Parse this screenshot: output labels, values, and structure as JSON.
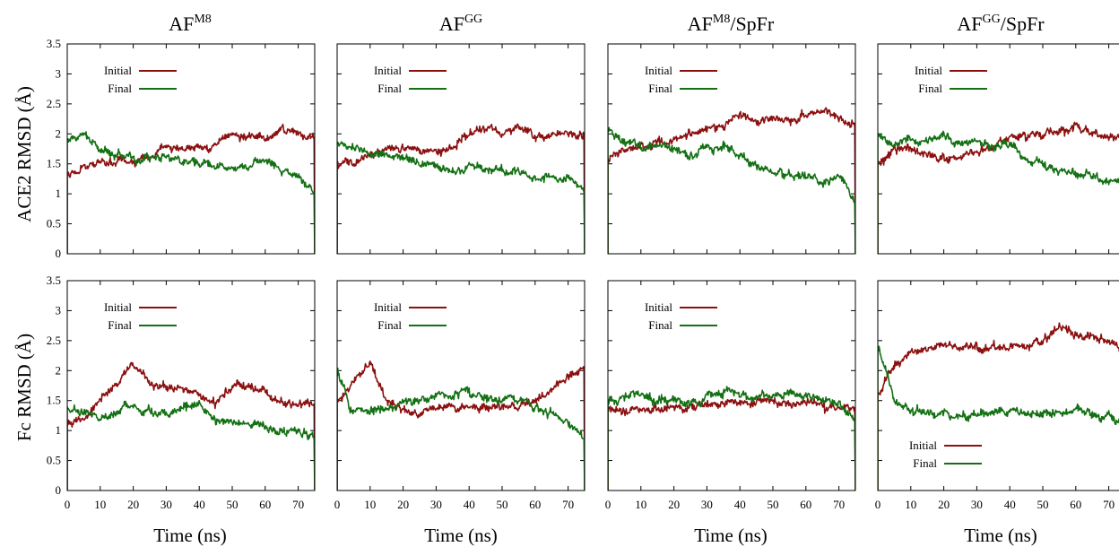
{
  "figure": {
    "ylabels": [
      "ACE2 RMSD (Å)",
      "Fc RMSD (Å)"
    ],
    "xlabel": "Time (ns)",
    "titles": [
      {
        "base": "AF",
        "sup": "M8",
        "suffix": ""
      },
      {
        "base": "AF",
        "sup": "GG",
        "suffix": ""
      },
      {
        "base": "AF",
        "sup": "M8",
        "suffix": "/SpFr"
      },
      {
        "base": "AF",
        "sup": "GG",
        "suffix": "/SpFr"
      }
    ],
    "legend": {
      "initial": "Initial",
      "final": "Final"
    },
    "colors": {
      "initial": "#8b1010",
      "final": "#137013"
    }
  },
  "chart_data": [
    {
      "type": "line",
      "row": "ACE2",
      "column_title": "AFM8",
      "xlabel": "Time (ns)",
      "ylabel": "ACE2 RMSD (Å)",
      "xlim": [
        0,
        75
      ],
      "ylim": [
        0,
        3.5
      ],
      "xticks": [
        0,
        10,
        20,
        30,
        40,
        50,
        60,
        70
      ],
      "yticks": [
        0,
        0.5,
        1,
        1.5,
        2,
        2.5,
        3,
        3.5
      ],
      "legend_position": "top-left",
      "series": [
        {
          "name": "Initial",
          "x": [
            0,
            5,
            10,
            15,
            20,
            25,
            30,
            35,
            40,
            45,
            50,
            55,
            60,
            65,
            70,
            75
          ],
          "y": [
            1.3,
            1.45,
            1.5,
            1.55,
            1.55,
            1.6,
            1.8,
            1.75,
            1.8,
            1.85,
            2.0,
            1.95,
            1.9,
            2.05,
            2.0,
            1.9
          ]
        },
        {
          "name": "Final",
          "x": [
            0,
            5,
            10,
            15,
            20,
            25,
            30,
            35,
            40,
            45,
            50,
            55,
            60,
            65,
            70,
            75
          ],
          "y": [
            1.9,
            2.0,
            1.7,
            1.7,
            1.6,
            1.6,
            1.65,
            1.55,
            1.5,
            1.45,
            1.4,
            1.45,
            1.6,
            1.4,
            1.3,
            1.0
          ]
        }
      ]
    },
    {
      "type": "line",
      "row": "ACE2",
      "column_title": "AFGG",
      "xlabel": "Time (ns)",
      "ylabel": "ACE2 RMSD (Å)",
      "xlim": [
        0,
        75
      ],
      "ylim": [
        0,
        3.5
      ],
      "xticks": [
        0,
        10,
        20,
        30,
        40,
        50,
        60,
        70
      ],
      "yticks": [
        0,
        0.5,
        1,
        1.5,
        2,
        2.5,
        3,
        3.5
      ],
      "legend_position": "top-left",
      "series": [
        {
          "name": "Initial",
          "x": [
            0,
            5,
            10,
            15,
            20,
            25,
            30,
            35,
            40,
            45,
            50,
            55,
            60,
            65,
            70,
            75
          ],
          "y": [
            1.5,
            1.55,
            1.65,
            1.75,
            1.75,
            1.7,
            1.7,
            1.8,
            2.0,
            2.05,
            2.0,
            2.1,
            1.95,
            2.0,
            2.05,
            1.95
          ]
        },
        {
          "name": "Final",
          "x": [
            0,
            5,
            10,
            15,
            20,
            25,
            30,
            35,
            40,
            45,
            50,
            55,
            60,
            65,
            70,
            75
          ],
          "y": [
            1.85,
            1.8,
            1.65,
            1.65,
            1.6,
            1.5,
            1.45,
            1.4,
            1.45,
            1.4,
            1.4,
            1.35,
            1.3,
            1.3,
            1.3,
            1.1
          ]
        }
      ]
    },
    {
      "type": "line",
      "row": "ACE2",
      "column_title": "AFM8/SpFr",
      "xlabel": "Time (ns)",
      "ylabel": "ACE2 RMSD (Å)",
      "xlim": [
        0,
        75
      ],
      "ylim": [
        0,
        3.5
      ],
      "xticks": [
        0,
        10,
        20,
        30,
        40,
        50,
        60,
        70
      ],
      "yticks": [
        0,
        0.5,
        1,
        1.5,
        2,
        2.5,
        3,
        3.5
      ],
      "legend_position": "top-left",
      "series": [
        {
          "name": "Initial",
          "x": [
            0,
            5,
            10,
            15,
            20,
            25,
            30,
            35,
            40,
            45,
            50,
            55,
            60,
            65,
            70,
            75
          ],
          "y": [
            1.6,
            1.75,
            1.8,
            1.85,
            1.9,
            2.0,
            2.05,
            2.15,
            2.3,
            2.2,
            2.25,
            2.2,
            2.35,
            2.4,
            2.3,
            2.2
          ]
        },
        {
          "name": "Final",
          "x": [
            0,
            5,
            10,
            15,
            20,
            25,
            30,
            35,
            40,
            45,
            50,
            55,
            60,
            65,
            70,
            75
          ],
          "y": [
            2.1,
            1.85,
            1.8,
            1.8,
            1.7,
            1.65,
            1.8,
            1.8,
            1.6,
            1.5,
            1.35,
            1.3,
            1.25,
            1.2,
            1.3,
            0.9
          ]
        }
      ]
    },
    {
      "type": "line",
      "row": "ACE2",
      "column_title": "AFGG/SpFr",
      "xlabel": "Time (ns)",
      "ylabel": "ACE2 RMSD (Å)",
      "xlim": [
        0,
        75
      ],
      "ylim": [
        0,
        3.5
      ],
      "xticks": [
        0,
        10,
        20,
        30,
        40,
        50,
        60,
        70
      ],
      "yticks": [
        0,
        0.5,
        1,
        1.5,
        2,
        2.5,
        3,
        3.5
      ],
      "legend_position": "top-left",
      "series": [
        {
          "name": "Initial",
          "x": [
            0,
            5,
            10,
            15,
            20,
            25,
            30,
            35,
            40,
            45,
            50,
            55,
            60,
            65,
            70,
            75
          ],
          "y": [
            1.5,
            1.7,
            1.75,
            1.65,
            1.6,
            1.65,
            1.7,
            1.8,
            1.95,
            1.95,
            2.0,
            2.05,
            2.1,
            2.0,
            1.95,
            1.9
          ]
        },
        {
          "name": "Final",
          "x": [
            0,
            5,
            10,
            15,
            20,
            25,
            30,
            35,
            40,
            45,
            50,
            55,
            60,
            65,
            70,
            75
          ],
          "y": [
            2.0,
            1.85,
            1.9,
            1.9,
            1.95,
            1.85,
            1.85,
            1.8,
            1.85,
            1.6,
            1.5,
            1.4,
            1.35,
            1.3,
            1.2,
            1.2
          ]
        }
      ]
    },
    {
      "type": "line",
      "row": "Fc",
      "column_title": "AFM8",
      "xlabel": "Time (ns)",
      "ylabel": "Fc RMSD (Å)",
      "xlim": [
        0,
        75
      ],
      "ylim": [
        0,
        3.5
      ],
      "xticks": [
        0,
        10,
        20,
        30,
        40,
        50,
        60,
        70
      ],
      "yticks": [
        0,
        0.5,
        1,
        1.5,
        2,
        2.5,
        3,
        3.5
      ],
      "legend_position": "top-left",
      "series": [
        {
          "name": "Initial",
          "x": [
            0,
            5,
            10,
            15,
            20,
            25,
            30,
            35,
            40,
            45,
            50,
            55,
            60,
            65,
            70,
            75
          ],
          "y": [
            1.1,
            1.2,
            1.5,
            1.8,
            2.1,
            1.8,
            1.7,
            1.75,
            1.6,
            1.45,
            1.7,
            1.75,
            1.6,
            1.5,
            1.45,
            1.4
          ]
        },
        {
          "name": "Final",
          "x": [
            0,
            5,
            10,
            15,
            20,
            25,
            30,
            35,
            40,
            45,
            50,
            55,
            60,
            65,
            70,
            75
          ],
          "y": [
            1.35,
            1.3,
            1.2,
            1.3,
            1.4,
            1.3,
            1.3,
            1.4,
            1.45,
            1.15,
            1.15,
            1.1,
            1.05,
            1.0,
            1.0,
            0.9
          ]
        }
      ]
    },
    {
      "type": "line",
      "row": "Fc",
      "column_title": "AFGG",
      "xlabel": "Time (ns)",
      "ylabel": "Fc RMSD (Å)",
      "xlim": [
        0,
        75
      ],
      "ylim": [
        0,
        3.5
      ],
      "xticks": [
        0,
        10,
        20,
        30,
        40,
        50,
        60,
        70
      ],
      "yticks": [
        0,
        0.5,
        1,
        1.5,
        2,
        2.5,
        3,
        3.5
      ],
      "legend_position": "top-left",
      "series": [
        {
          "name": "Initial",
          "x": [
            0,
            5,
            10,
            15,
            20,
            25,
            30,
            35,
            40,
            45,
            50,
            55,
            60,
            65,
            70,
            75
          ],
          "y": [
            1.5,
            1.8,
            2.1,
            1.5,
            1.35,
            1.3,
            1.35,
            1.4,
            1.4,
            1.4,
            1.45,
            1.4,
            1.5,
            1.7,
            1.9,
            2.0
          ]
        },
        {
          "name": "Final",
          "x": [
            0,
            5,
            10,
            15,
            20,
            25,
            30,
            35,
            40,
            45,
            50,
            55,
            60,
            65,
            70,
            75
          ],
          "y": [
            2.0,
            1.3,
            1.3,
            1.4,
            1.45,
            1.5,
            1.6,
            1.6,
            1.65,
            1.55,
            1.5,
            1.5,
            1.4,
            1.3,
            1.1,
            0.9
          ]
        }
      ]
    },
    {
      "type": "line",
      "row": "Fc",
      "column_title": "AFM8/SpFr",
      "xlabel": "Time (ns)",
      "ylabel": "Fc RMSD (Å)",
      "xlim": [
        0,
        75
      ],
      "ylim": [
        0,
        3.5
      ],
      "xticks": [
        0,
        10,
        20,
        30,
        40,
        50,
        60,
        70
      ],
      "yticks": [
        0,
        0.5,
        1,
        1.5,
        2,
        2.5,
        3,
        3.5
      ],
      "legend_position": "top-left",
      "series": [
        {
          "name": "Initial",
          "x": [
            0,
            5,
            10,
            15,
            20,
            25,
            30,
            35,
            40,
            45,
            50,
            55,
            60,
            65,
            70,
            75
          ],
          "y": [
            1.4,
            1.3,
            1.35,
            1.35,
            1.4,
            1.4,
            1.45,
            1.5,
            1.45,
            1.45,
            1.5,
            1.45,
            1.5,
            1.45,
            1.4,
            1.35
          ]
        },
        {
          "name": "Final",
          "x": [
            0,
            5,
            10,
            15,
            20,
            25,
            30,
            35,
            40,
            45,
            50,
            55,
            60,
            65,
            70,
            75
          ],
          "y": [
            1.5,
            1.55,
            1.6,
            1.5,
            1.5,
            1.45,
            1.6,
            1.65,
            1.6,
            1.55,
            1.55,
            1.6,
            1.6,
            1.55,
            1.45,
            1.2
          ]
        }
      ]
    },
    {
      "type": "line",
      "row": "Fc",
      "column_title": "AFGG/SpFr",
      "xlabel": "Time (ns)",
      "ylabel": "Fc RMSD (Å)",
      "xlim": [
        0,
        75
      ],
      "ylim": [
        0,
        3.5
      ],
      "xticks": [
        0,
        10,
        20,
        30,
        40,
        50,
        60,
        70
      ],
      "yticks": [
        0,
        0.5,
        1,
        1.5,
        2,
        2.5,
        3,
        3.5
      ],
      "legend_position": "bottom-left",
      "series": [
        {
          "name": "Initial",
          "x": [
            0,
            5,
            10,
            15,
            20,
            25,
            30,
            35,
            40,
            45,
            50,
            55,
            60,
            65,
            70,
            75
          ],
          "y": [
            1.6,
            2.1,
            2.3,
            2.35,
            2.45,
            2.4,
            2.4,
            2.35,
            2.4,
            2.4,
            2.55,
            2.7,
            2.6,
            2.5,
            2.45,
            2.4
          ]
        },
        {
          "name": "Final",
          "x": [
            0,
            5,
            10,
            15,
            20,
            25,
            30,
            35,
            40,
            45,
            50,
            55,
            60,
            65,
            70,
            75
          ],
          "y": [
            2.4,
            1.5,
            1.35,
            1.3,
            1.3,
            1.25,
            1.3,
            1.3,
            1.35,
            1.3,
            1.3,
            1.3,
            1.35,
            1.25,
            1.2,
            1.1
          ]
        }
      ]
    }
  ]
}
